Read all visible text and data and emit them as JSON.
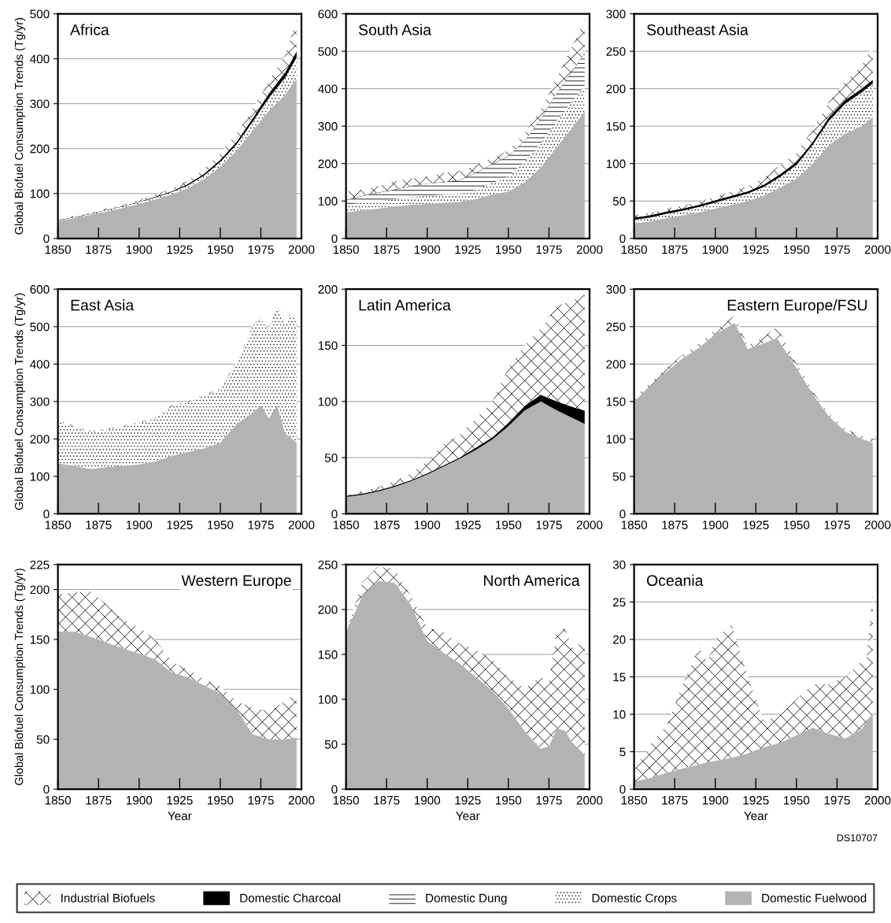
{
  "chart_data": [
    {
      "type": "area",
      "stacked": true,
      "title": "Africa",
      "ylabel": "Global Biofuel Consumption Trends (Tg/yr)",
      "grid": "y",
      "legend": "bottom",
      "xlim": [
        1850,
        2000
      ],
      "xticks": [
        1850,
        1875,
        1900,
        1925,
        1950,
        1975,
        2000
      ],
      "ylim": [
        0,
        500
      ],
      "yticks": [
        0,
        100,
        200,
        300,
        400,
        500
      ],
      "x": [
        1850,
        1860,
        1870,
        1880,
        1890,
        1900,
        1910,
        1920,
        1930,
        1940,
        1950,
        1960,
        1970,
        1980,
        1990,
        1997
      ],
      "series": [
        {
          "name": "Domestic Fuelwood",
          "color": "#b3b3b3",
          "values": [
            38,
            45,
            52,
            60,
            68,
            77,
            87,
            98,
            112,
            132,
            160,
            195,
            240,
            285,
            320,
            355
          ]
        },
        {
          "name": "Domestic Crops",
          "color": "#ffffff",
          "values": [
            2,
            2,
            2,
            3,
            3,
            4,
            4,
            5,
            6,
            8,
            10,
            14,
            20,
            28,
            38,
            48
          ]
        },
        {
          "name": "Domestic Charcoal",
          "color": "#000000",
          "values": [
            1,
            1,
            1,
            1,
            1,
            1,
            2,
            2,
            3,
            4,
            5,
            6,
            8,
            10,
            12,
            14
          ]
        },
        {
          "name": "Industrial Biofuels",
          "color": "#ffffff",
          "values": [
            1,
            2,
            2,
            3,
            3,
            4,
            5,
            6,
            8,
            10,
            15,
            18,
            20,
            27,
            38,
            70
          ]
        }
      ]
    },
    {
      "type": "area",
      "stacked": true,
      "title": "South Asia",
      "grid": "y",
      "xlim": [
        1850,
        2000
      ],
      "xticks": [
        1850,
        1875,
        1900,
        1925,
        1950,
        1975,
        2000
      ],
      "ylim": [
        0,
        600
      ],
      "yticks": [
        0,
        100,
        200,
        300,
        400,
        500,
        600
      ],
      "x": [
        1850,
        1860,
        1870,
        1880,
        1890,
        1900,
        1910,
        1920,
        1930,
        1940,
        1950,
        1960,
        1970,
        1980,
        1990,
        1997
      ],
      "series": [
        {
          "name": "Domestic Fuelwood",
          "color": "#b3b3b3",
          "values": [
            70,
            75,
            80,
            85,
            90,
            92,
            95,
            98,
            105,
            118,
            125,
            150,
            190,
            245,
            300,
            340
          ]
        },
        {
          "name": "Domestic Crops",
          "color": "#ffffff",
          "values": [
            20,
            20,
            20,
            20,
            20,
            22,
            22,
            22,
            25,
            30,
            40,
            55,
            65,
            70,
            70,
            70
          ]
        },
        {
          "name": "Domestic Dung",
          "color": "#ffffff",
          "values": [
            12,
            18,
            22,
            25,
            30,
            32,
            33,
            35,
            45,
            50,
            55,
            55,
            65,
            75,
            80,
            85
          ]
        },
        {
          "name": "Domestic Charcoal",
          "color": "#000000",
          "values": [
            1,
            1,
            1,
            1,
            1,
            1,
            1,
            1,
            1,
            1,
            1,
            1,
            1,
            1,
            1,
            1
          ]
        },
        {
          "name": "Industrial Biofuels",
          "color": "#ffffff",
          "values": [
            22,
            16,
            17,
            22,
            19,
            18,
            24,
            24,
            19,
            16,
            14,
            20,
            24,
            39,
            69,
            89
          ]
        }
      ]
    },
    {
      "type": "area",
      "stacked": true,
      "title": "Southeast Asia",
      "grid": "y",
      "xlim": [
        1850,
        2000
      ],
      "xticks": [
        1850,
        1875,
        1900,
        1925,
        1950,
        1975,
        2000
      ],
      "ylim": [
        0,
        300
      ],
      "yticks": [
        0,
        50,
        100,
        150,
        200,
        250,
        300
      ],
      "x": [
        1850,
        1860,
        1870,
        1880,
        1890,
        1900,
        1910,
        1920,
        1930,
        1940,
        1950,
        1960,
        1970,
        1980,
        1990,
        1997
      ],
      "series": [
        {
          "name": "Domestic Fuelwood",
          "color": "#b3b3b3",
          "values": [
            20,
            23,
            27,
            31,
            35,
            40,
            45,
            50,
            57,
            68,
            80,
            100,
            125,
            140,
            150,
            162
          ]
        },
        {
          "name": "Domestic Crops",
          "color": "#ffffff",
          "values": [
            5,
            5,
            6,
            6,
            7,
            8,
            9,
            10,
            12,
            14,
            18,
            25,
            32,
            40,
            45,
            45
          ]
        },
        {
          "name": "Domestic Charcoal",
          "color": "#000000",
          "values": [
            3,
            3,
            3,
            3,
            3,
            3,
            3,
            3,
            3,
            4,
            4,
            4,
            5,
            5,
            5,
            5
          ]
        },
        {
          "name": "Industrial Biofuels",
          "color": "#ffffff",
          "values": [
            3,
            3,
            4,
            4,
            4,
            5,
            6,
            7,
            9,
            12,
            12,
            16,
            20,
            25,
            30,
            45
          ]
        }
      ]
    },
    {
      "type": "area",
      "stacked": true,
      "title": "East Asia",
      "ylabel": "Global Biofuel Consumption Trends (Tg/yr)",
      "grid": "y",
      "xlim": [
        1850,
        2000
      ],
      "xticks": [
        1850,
        1875,
        1900,
        1925,
        1950,
        1975,
        2000
      ],
      "ylim": [
        0,
        600
      ],
      "yticks": [
        0,
        100,
        200,
        300,
        400,
        500,
        600
      ],
      "x": [
        1850,
        1860,
        1870,
        1880,
        1890,
        1900,
        1910,
        1920,
        1930,
        1940,
        1950,
        1955,
        1960,
        1965,
        1970,
        1975,
        1980,
        1985,
        1990,
        1993,
        1997
      ],
      "series": [
        {
          "name": "Domestic Fuelwood",
          "color": "#b3b3b3",
          "values": [
            135,
            128,
            120,
            125,
            128,
            132,
            140,
            155,
            165,
            175,
            190,
            215,
            240,
            255,
            270,
            290,
            255,
            290,
            215,
            205,
            190
          ]
        },
        {
          "name": "Domestic Crops",
          "color": "#ffffff",
          "values": [
            112,
            104,
            99,
            100,
            104,
            110,
            115,
            132,
            132,
            140,
            142,
            152,
            167,
            192,
            232,
            232,
            232,
            267,
            292,
            327,
            327
          ]
        },
        {
          "name": "Industrial Biofuels",
          "color": "#ffffff",
          "values": [
            3,
            3,
            3,
            3,
            3,
            3,
            3,
            3,
            3,
            3,
            3,
            3,
            3,
            3,
            3,
            3,
            3,
            3,
            3,
            3,
            3
          ]
        }
      ]
    },
    {
      "type": "area",
      "stacked": true,
      "title": "Latin America",
      "grid": "y",
      "xlim": [
        1850,
        2000
      ],
      "xticks": [
        1850,
        1875,
        1900,
        1925,
        1950,
        1975,
        2000
      ],
      "ylim": [
        0,
        200
      ],
      "yticks": [
        0,
        50,
        100,
        150,
        200
      ],
      "x": [
        1850,
        1860,
        1870,
        1880,
        1890,
        1900,
        1910,
        1920,
        1930,
        1940,
        1950,
        1960,
        1970,
        1980,
        1990,
        1997
      ],
      "series": [
        {
          "name": "Domestic Fuelwood",
          "color": "#b3b3b3",
          "values": [
            15,
            17,
            20,
            24,
            29,
            35,
            42,
            49,
            57,
            66,
            78,
            92,
            100,
            92,
            85,
            80
          ]
        },
        {
          "name": "Domestic Charcoal",
          "color": "#000000",
          "values": [
            1,
            1,
            1,
            1,
            1,
            1,
            1,
            1,
            2,
            2,
            3,
            4,
            6,
            8,
            10,
            12
          ]
        },
        {
          "name": "Industrial Biofuels",
          "color": "#ffffff",
          "values": [
            1,
            2,
            3,
            4,
            6,
            11,
            19,
            20,
            26,
            32,
            49,
            54,
            59,
            85,
            95,
            103
          ]
        }
      ]
    },
    {
      "type": "area",
      "stacked": true,
      "title": "Eastern Europe/FSU",
      "grid": "y",
      "xlim": [
        1850,
        2000
      ],
      "xticks": [
        1850,
        1875,
        1900,
        1925,
        1950,
        1975,
        2000
      ],
      "ylim": [
        0,
        300
      ],
      "yticks": [
        0,
        50,
        100,
        150,
        200,
        250,
        300
      ],
      "x": [
        1850,
        1860,
        1870,
        1880,
        1890,
        1900,
        1912,
        1920,
        1930,
        1938,
        1950,
        1960,
        1970,
        1980,
        1990,
        1997
      ],
      "series": [
        {
          "name": "Domestic Fuelwood",
          "color": "#b3b3b3",
          "values": [
            150,
            170,
            190,
            208,
            222,
            240,
            255,
            220,
            228,
            235,
            195,
            160,
            130,
            110,
            100,
            95
          ]
        },
        {
          "name": "Industrial Biofuels",
          "color": "#ffffff",
          "values": [
            5,
            5,
            5,
            5,
            5,
            6,
            10,
            5,
            8,
            15,
            6,
            4,
            4,
            4,
            4,
            4
          ]
        }
      ]
    },
    {
      "type": "area",
      "stacked": true,
      "title": "Western Europe",
      "ylabel": "Global Biofuel Consumption Trends (Tg/yr)",
      "xlabel": "Year",
      "grid": "y",
      "xlim": [
        1850,
        2000
      ],
      "xticks": [
        1850,
        1875,
        1900,
        1925,
        1950,
        1975,
        2000
      ],
      "ylim": [
        0,
        225
      ],
      "yticks": [
        0,
        50,
        100,
        150,
        200,
        225
      ],
      "x": [
        1850,
        1860,
        1870,
        1880,
        1890,
        1900,
        1910,
        1920,
        1930,
        1940,
        1950,
        1960,
        1970,
        1980,
        1990,
        1997
      ],
      "series": [
        {
          "name": "Domestic Fuelwood",
          "color": "#b3b3b3",
          "values": [
            158,
            158,
            153,
            147,
            141,
            136,
            130,
            117,
            112,
            104,
            96,
            80,
            55,
            50,
            50,
            52
          ]
        },
        {
          "name": "Industrial Biofuels",
          "color": "#ffffff",
          "values": [
            37,
            39,
            45,
            38,
            29,
            26,
            20,
            11,
            8,
            6,
            7,
            8,
            27,
            28,
            38,
            45
          ]
        }
      ]
    },
    {
      "type": "area",
      "stacked": true,
      "title": "North America",
      "xlabel": "Year",
      "grid": "y",
      "xlim": [
        1850,
        2000
      ],
      "xticks": [
        1850,
        1875,
        1900,
        1925,
        1950,
        1975,
        2000
      ],
      "ylim": [
        0,
        250
      ],
      "yticks": [
        0,
        50,
        100,
        150,
        200,
        250
      ],
      "x": [
        1850,
        1860,
        1870,
        1880,
        1890,
        1900,
        1910,
        1920,
        1930,
        1940,
        1950,
        1960,
        1970,
        1975,
        1980,
        1985,
        1990,
        1997
      ],
      "series": [
        {
          "name": "Domestic Fuelwood",
          "color": "#b3b3b3",
          "values": [
            175,
            215,
            232,
            230,
            205,
            165,
            152,
            140,
            125,
            110,
            90,
            65,
            45,
            48,
            68,
            65,
            50,
            38
          ]
        },
        {
          "name": "Industrial Biofuels",
          "color": "#ffffff",
          "values": [
            0,
            15,
            16,
            15,
            10,
            15,
            23,
            22,
            30,
            35,
            35,
            47,
            80,
            72,
            112,
            113,
            105,
            130
          ]
        }
      ]
    },
    {
      "type": "area",
      "stacked": true,
      "title": "Oceania",
      "xlabel": "Year",
      "grid": "y",
      "xlim": [
        1850,
        2000
      ],
      "xticks": [
        1850,
        1875,
        1900,
        1925,
        1950,
        1975,
        2000
      ],
      "ylim": [
        0,
        30
      ],
      "yticks": [
        0,
        5,
        10,
        15,
        20,
        25,
        30
      ],
      "annotations": [
        "DS10707"
      ],
      "x": [
        1850,
        1860,
        1870,
        1880,
        1890,
        1895,
        1900,
        1910,
        1920,
        1930,
        1940,
        1950,
        1960,
        1970,
        1980,
        1990,
        1993,
        1997
      ],
      "series": [
        {
          "name": "Domestic Fuelwood",
          "color": "#b3b3b3",
          "values": [
            1,
            1.5,
            2.2,
            2.8,
            3.3,
            3.6,
            3.8,
            4.2,
            4.8,
            5.6,
            6.2,
            7.2,
            8.2,
            7.4,
            6.8,
            8,
            9,
            10
          ]
        },
        {
          "name": "Industrial Biofuels",
          "color": "#ffffff",
          "values": [
            1.5,
            4.5,
            6.3,
            11.2,
            15.7,
            13.4,
            16.2,
            17.8,
            10.2,
            3.4,
            3.8,
            4.8,
            5.8,
            6.6,
            8.2,
            9,
            8,
            16
          ]
        }
      ]
    }
  ]
}
